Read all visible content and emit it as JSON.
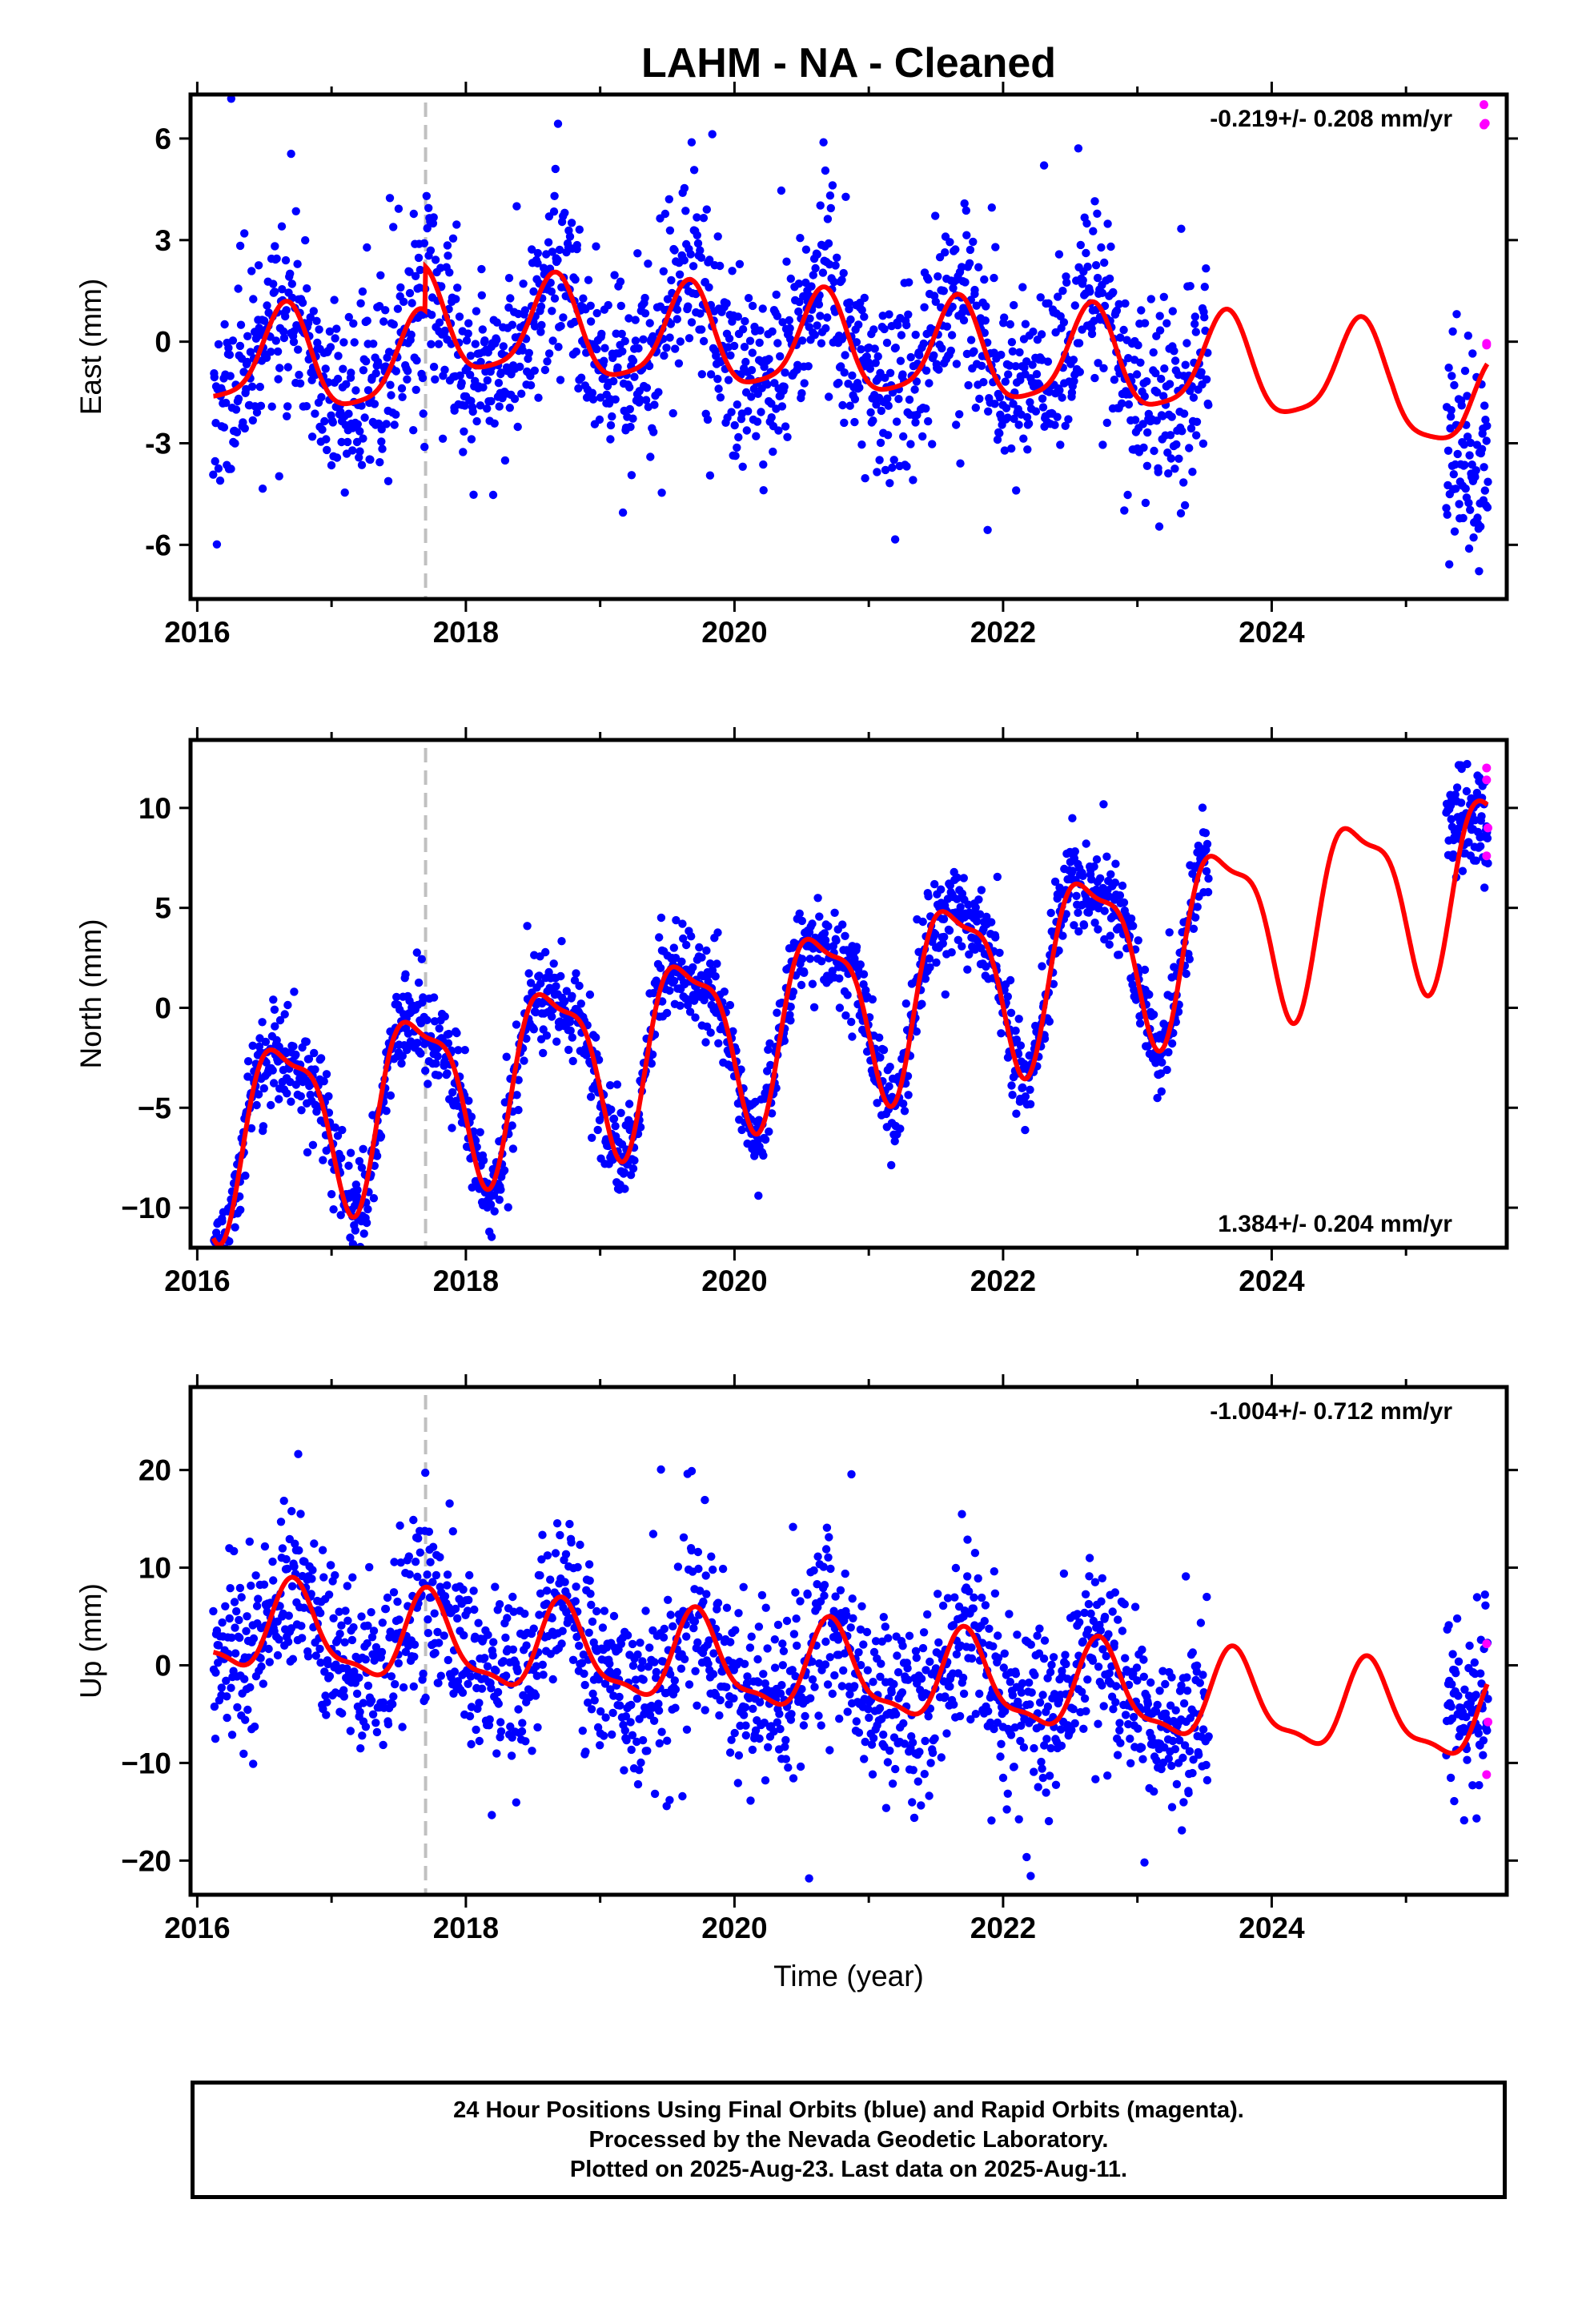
{
  "title": "LAHM  - NA - Cleaned",
  "footer": {
    "line1": "24 Hour Positions Using Final Orbits (blue) and Rapid Orbits (magenta).",
    "line2": "Processed by the Nevada Geodetic Laboratory.",
    "line3": "Plotted on 2025-Aug-23. Last data on 2025-Aug-11."
  },
  "colors": {
    "final": "#0000ff",
    "rapid": "#ff00ff",
    "model": "#ff0000",
    "marker": "#c0c0c0",
    "frame": "#000000"
  },
  "chart_data": [
    {
      "type": "scatter",
      "component": "East",
      "ylabel": "East (mm)",
      "xlabel": "",
      "rate_text": "-0.219+/- 0.208 mm/yr",
      "rate_position": "top-right",
      "xlim": [
        2015.95,
        2025.75
      ],
      "ylim": [
        -7.6,
        7.3
      ],
      "xticks": [
        "2016",
        "2018",
        "2020",
        "2022",
        "2024"
      ],
      "yticks": [
        "6",
        "3",
        "0",
        "-3",
        "-6"
      ],
      "ytick_values": [
        6,
        3,
        0,
        -3,
        -6
      ],
      "marker_year": 2017.7,
      "final_data": {
        "start": 2016.12,
        "end": 2023.53,
        "n": 1650,
        "seed": 11
      },
      "rapid_data": {
        "x": [
          2025.58,
          2025.58,
          2025.6,
          2025.59,
          2025.6
        ],
        "y": [
          7.0,
          6.4,
          -0.05,
          6.45,
          -0.1
        ]
      },
      "model": {
        "intercept": -0.1,
        "rate": -0.219,
        "ref_year": 2020.5,
        "annual": [
          -1.2,
          -0.8
        ],
        "semiannual": [
          0.25,
          -0.2
        ],
        "offset_at_marker": 1.3,
        "gap_end_drop": -1.0
      },
      "noise": {
        "sd": 1.35,
        "tail": 0.1
      },
      "post_gap": {
        "start": 2025.3,
        "end": 2025.61,
        "n": 85,
        "center": -3.6,
        "sd": 1.6
      }
    },
    {
      "type": "scatter",
      "component": "North",
      "ylabel": "North (mm)",
      "xlabel": "",
      "rate_text": "1.384+/- 0.204 mm/yr",
      "rate_position": "bottom-right",
      "xlim": [
        2015.95,
        2025.75
      ],
      "ylim": [
        -12,
        13.4
      ],
      "xticks": [
        "2016",
        "2018",
        "2020",
        "2022",
        "2024"
      ],
      "yticks": [
        "10",
        "5",
        "0",
        "−5",
        "−10"
      ],
      "ytick_values": [
        10,
        5,
        0,
        -5,
        -10
      ],
      "marker_year": 2017.7,
      "final_data": {
        "start": 2016.12,
        "end": 2023.53,
        "n": 1650,
        "seed": 23
      },
      "rapid_data": {
        "x": [
          2025.6,
          2025.6,
          2025.61,
          2025.6
        ],
        "y": [
          12.0,
          11.4,
          9.0,
          7.6
        ]
      },
      "model": {
        "intercept": -0.3,
        "rate": 1.384,
        "ref_year": 2020.5,
        "annual": [
          -3.4,
          -2.6
        ],
        "semiannual": [
          -1.0,
          0.9
        ],
        "offset_at_marker": 0.0,
        "gap_end_drop": 0.0
      },
      "noise": {
        "sd": 1.1,
        "tail": 0.06
      },
      "post_gap": {
        "start": 2025.3,
        "end": 2025.61,
        "n": 85,
        "center": 9.3,
        "sd": 1.3
      }
    },
    {
      "type": "scatter",
      "component": "Up",
      "ylabel": "Up (mm)",
      "xlabel": "Time (year)",
      "rate_text": "-1.004+/- 0.712 mm/yr",
      "rate_position": "top-right",
      "xlim": [
        2015.95,
        2025.75
      ],
      "ylim": [
        -23.5,
        28.5
      ],
      "xticks": [
        "2016",
        "2018",
        "2020",
        "2022",
        "2024"
      ],
      "yticks": [
        "20",
        "10",
        "0",
        "−10",
        "−20"
      ],
      "ytick_values": [
        20,
        10,
        0,
        -10,
        -20
      ],
      "marker_year": 2017.7,
      "final_data": {
        "start": 2016.12,
        "end": 2023.53,
        "n": 1650,
        "seed": 37
      },
      "rapid_data": {
        "x": [
          2025.6,
          2025.61,
          2025.6
        ],
        "y": [
          2.2,
          -5.8,
          -11.2
        ]
      },
      "model": {
        "intercept": -0.5,
        "rate": -1.004,
        "ref_year": 2020.5,
        "annual": [
          -4.3,
          -0.6
        ],
        "semiannual": [
          0.9,
          -1.1
        ],
        "offset_at_marker": 0.0,
        "gap_end_drop": 0.0
      },
      "noise": {
        "sd": 4.3,
        "tail": 0.1
      },
      "post_gap": {
        "start": 2025.3,
        "end": 2025.61,
        "n": 85,
        "center": -4.0,
        "sd": 4.5
      }
    }
  ]
}
